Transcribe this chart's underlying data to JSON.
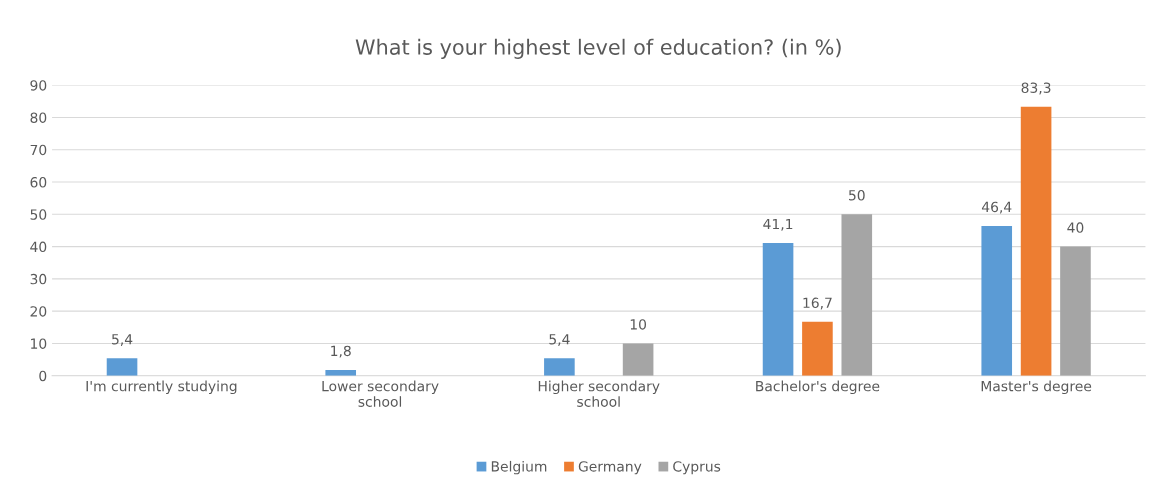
{
  "chart_data": {
    "type": "bar",
    "title": "What is your highest level of education? (in %)",
    "categories": [
      "I'm currently studying",
      "Lower secondary\nschool",
      "Higher secondary\nschool",
      "Bachelor's degree",
      "Master's degree"
    ],
    "series": [
      {
        "name": "Belgium",
        "color": "#5b9bd5",
        "values": [
          5.4,
          1.8,
          5.4,
          41.1,
          46.4
        ],
        "value_labels": [
          "5,4",
          "1,8",
          "5,4",
          "41,1",
          "46,4"
        ]
      },
      {
        "name": "Germany",
        "color": "#ed7d31",
        "values": [
          null,
          null,
          null,
          16.7,
          83.3
        ],
        "value_labels": [
          null,
          null,
          null,
          "16,7",
          "83,3"
        ]
      },
      {
        "name": "Cyprus",
        "color": "#a5a5a5",
        "values": [
          null,
          null,
          10,
          50,
          40
        ],
        "value_labels": [
          null,
          null,
          "10",
          "50",
          "40"
        ]
      }
    ],
    "ylim": [
      0,
      90
    ],
    "yticks": [
      0,
      10,
      20,
      30,
      40,
      50,
      60,
      70,
      80,
      90
    ],
    "grid": "y",
    "legend": "bottom"
  }
}
